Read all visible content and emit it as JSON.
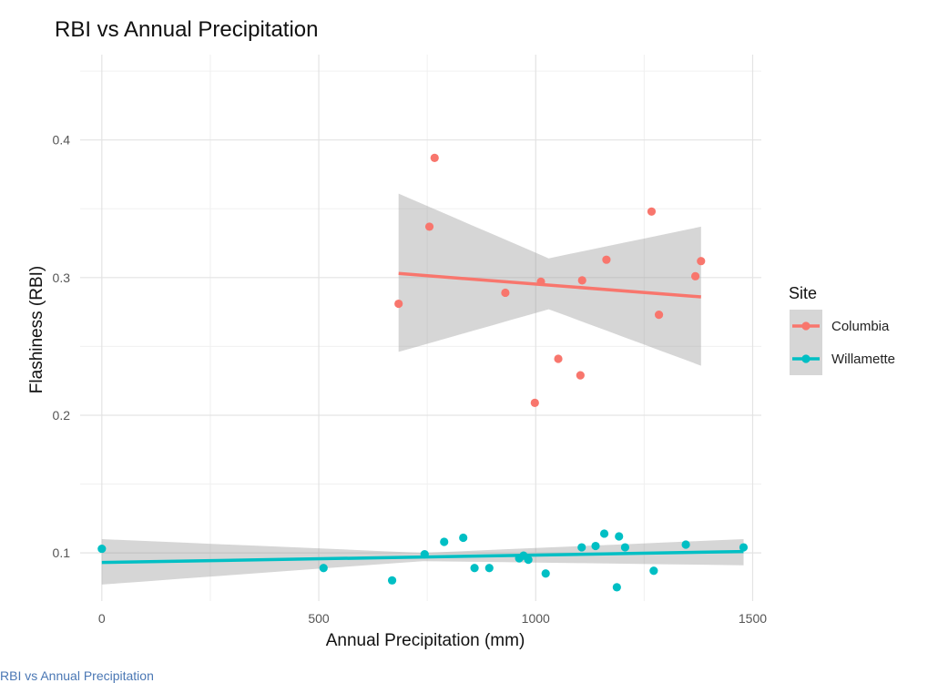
{
  "chart_data": {
    "type": "scatter",
    "title": "RBI vs Annual Precipitation",
    "xlabel": "Annual Precipitation (mm)",
    "ylabel": "Flashiness (RBI)",
    "xlim": [
      -50,
      1520
    ],
    "ylim": [
      0.065,
      0.462
    ],
    "x_ticks": [
      0,
      500,
      1000,
      1500
    ],
    "x_tick_labels": [
      "0",
      "500",
      "1000",
      "1500"
    ],
    "y_ticks": [
      0.1,
      0.2,
      0.3,
      0.4
    ],
    "y_tick_labels": [
      "0.1",
      "0.2",
      "0.3",
      "0.4"
    ],
    "grid": true,
    "legend": {
      "title": "Site",
      "placement": "right"
    },
    "series": [
      {
        "name": "Columbia",
        "color": "#f8766d",
        "points": [
          {
            "x": 684,
            "y": 0.281
          },
          {
            "x": 755,
            "y": 0.337
          },
          {
            "x": 767,
            "y": 0.387
          },
          {
            "x": 930,
            "y": 0.289
          },
          {
            "x": 998,
            "y": 0.209
          },
          {
            "x": 1012,
            "y": 0.297
          },
          {
            "x": 1052,
            "y": 0.241
          },
          {
            "x": 1103,
            "y": 0.229
          },
          {
            "x": 1107,
            "y": 0.298
          },
          {
            "x": 1163,
            "y": 0.313
          },
          {
            "x": 1267,
            "y": 0.348
          },
          {
            "x": 1284,
            "y": 0.273
          },
          {
            "x": 1368,
            "y": 0.301
          },
          {
            "x": 1381,
            "y": 0.312
          }
        ],
        "fit": {
          "x": [
            684,
            1381
          ],
          "y": [
            0.303,
            0.286
          ]
        },
        "band": {
          "x": [
            684,
            1030,
            1381
          ],
          "upper": [
            0.361,
            0.314,
            0.337
          ],
          "lower": [
            0.246,
            0.277,
            0.236
          ]
        }
      },
      {
        "name": "Willamette",
        "color": "#00bfc4",
        "points": [
          {
            "x": 0,
            "y": 0.103
          },
          {
            "x": 511,
            "y": 0.089
          },
          {
            "x": 669,
            "y": 0.08
          },
          {
            "x": 744,
            "y": 0.099
          },
          {
            "x": 789,
            "y": 0.108
          },
          {
            "x": 833,
            "y": 0.111
          },
          {
            "x": 859,
            "y": 0.089
          },
          {
            "x": 893,
            "y": 0.089
          },
          {
            "x": 962,
            "y": 0.096
          },
          {
            "x": 972,
            "y": 0.098
          },
          {
            "x": 983,
            "y": 0.095
          },
          {
            "x": 1023,
            "y": 0.085
          },
          {
            "x": 1106,
            "y": 0.104
          },
          {
            "x": 1138,
            "y": 0.105
          },
          {
            "x": 1158,
            "y": 0.114
          },
          {
            "x": 1187,
            "y": 0.075
          },
          {
            "x": 1192,
            "y": 0.112
          },
          {
            "x": 1206,
            "y": 0.104
          },
          {
            "x": 1272,
            "y": 0.087
          },
          {
            "x": 1346,
            "y": 0.106
          },
          {
            "x": 1479,
            "y": 0.104
          }
        ],
        "fit": {
          "x": [
            0,
            1479
          ],
          "y": [
            0.093,
            0.101
          ]
        },
        "band": {
          "x": [
            0,
            740,
            1479
          ],
          "upper": [
            0.11,
            0.1,
            0.11
          ],
          "lower": [
            0.077,
            0.094,
            0.091
          ]
        }
      }
    ]
  },
  "caption": "RBI vs Annual Precipitation"
}
